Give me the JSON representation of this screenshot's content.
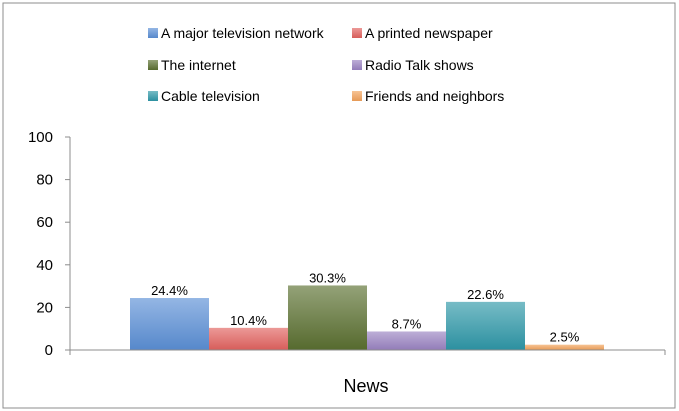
{
  "chart_data": {
    "type": "bar",
    "categories": [
      "News"
    ],
    "series": [
      {
        "name": "A major television network",
        "values": [
          24.4
        ],
        "data_label": "24.4%",
        "color": "#5b8fd6"
      },
      {
        "name": "A printed newspaper",
        "values": [
          10.4
        ],
        "data_label": "10.4%",
        "color": "#e2625f"
      },
      {
        "name": "The internet",
        "values": [
          30.3
        ],
        "data_label": "30.3%",
        "color": "#5a7030"
      },
      {
        "name": "Radio Talk shows",
        "values": [
          8.7
        ],
        "data_label": "8.7%",
        "color": "#9a82c2"
      },
      {
        "name": "Cable television",
        "values": [
          22.6
        ],
        "data_label": "22.6%",
        "color": "#2e98a8"
      },
      {
        "name": "Friends and neighbors",
        "values": [
          2.5
        ],
        "data_label": "2.5%",
        "color": "#f2a25a"
      }
    ],
    "ylim": [
      0,
      100
    ],
    "yticks": [
      "0",
      "20",
      "40",
      "60",
      "80",
      "100"
    ],
    "legend_position": "top",
    "grid": false
  }
}
